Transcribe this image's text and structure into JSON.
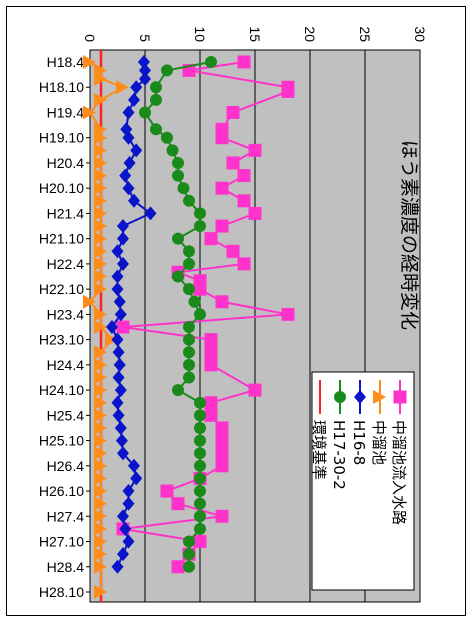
{
  "chart_data": {
    "type": "line",
    "title": "ほう素濃度の経時変化",
    "xlabel": "",
    "ylabel": "",
    "ylim": [
      0,
      30
    ],
    "grid": true,
    "legend_placement": "bottom-right",
    "date_ticks": [
      "H18.4",
      "H18.10",
      "H19.4",
      "H19.10",
      "H20.4",
      "H20.10",
      "H21.4",
      "H21.10",
      "H22.4",
      "H22.10",
      "H23.4",
      "H23.10",
      "H24.4",
      "H24.10",
      "H25.4",
      "H25.10",
      "H26.4",
      "H26.10",
      "H27.4",
      "H27.10",
      "H28.4",
      "H28.10"
    ],
    "value_ticks": [
      "0",
      "5",
      "10",
      "15",
      "20",
      "25",
      "30"
    ],
    "reference_line": {
      "name": "環境基準",
      "value": 1,
      "color": "#ff2020"
    },
    "series": [
      {
        "name": "中溜池流入水路",
        "color": "#ff33cc",
        "marker": "square",
        "points": [
          [
            "H18.4",
            14
          ],
          [
            "H18.6",
            9
          ],
          [
            "H18.10",
            18
          ],
          [
            "H18.11",
            18
          ],
          [
            "H19.4",
            13
          ],
          [
            "H19.8",
            12
          ],
          [
            "H19.10",
            12
          ],
          [
            "H20.1",
            15
          ],
          [
            "H20.4",
            13
          ],
          [
            "H20.7",
            14
          ],
          [
            "H20.10",
            12
          ],
          [
            "H21.1",
            14
          ],
          [
            "H21.4",
            15
          ],
          [
            "H21.7",
            12
          ],
          [
            "H21.10",
            11
          ],
          [
            "H22.1",
            13
          ],
          [
            "H22.4",
            14
          ],
          [
            "H22.6",
            8
          ],
          [
            "H22.8",
            10
          ],
          [
            "H22.10",
            10
          ],
          [
            "H23.1",
            12
          ],
          [
            "H23.4",
            18
          ],
          [
            "H23.7",
            3
          ],
          [
            "H23.10",
            11
          ],
          [
            "H24.1",
            11
          ],
          [
            "H24.4",
            11
          ],
          [
            "H24.10",
            15
          ],
          [
            "H25.1",
            11
          ],
          [
            "H25.4",
            11
          ],
          [
            "H25.7",
            12
          ],
          [
            "H25.10",
            12
          ],
          [
            "H26.1",
            12
          ],
          [
            "H26.4",
            12
          ],
          [
            "H26.7",
            10
          ],
          [
            "H26.10",
            7
          ],
          [
            "H27.1",
            8
          ],
          [
            "H27.4",
            12
          ],
          [
            "H27.7",
            3
          ],
          [
            "H27.10",
            10
          ],
          [
            "H28.1",
            9
          ],
          [
            "H28.4",
            8
          ]
        ]
      },
      {
        "name": "中溜池",
        "color": "#ff8c1a",
        "marker": "triangle",
        "points": [
          [
            "H18.4",
            0
          ],
          [
            "H18.6",
            1
          ],
          [
            "H18.8",
            1
          ],
          [
            "H18.10",
            3
          ],
          [
            "H19.1",
            1
          ],
          [
            "H19.4",
            0
          ],
          [
            "H19.8",
            1
          ],
          [
            "H19.10",
            1
          ],
          [
            "H20.1",
            1
          ],
          [
            "H20.4",
            1
          ],
          [
            "H20.7",
            1
          ],
          [
            "H20.10",
            1
          ],
          [
            "H21.1",
            1
          ],
          [
            "H21.4",
            1
          ],
          [
            "H21.7",
            1
          ],
          [
            "H21.10",
            1
          ],
          [
            "H22.1",
            1
          ],
          [
            "H22.4",
            1
          ],
          [
            "H22.7",
            1
          ],
          [
            "H22.10",
            1
          ],
          [
            "H23.1",
            0
          ],
          [
            "H23.4",
            1
          ],
          [
            "H23.7",
            1
          ],
          [
            "H23.10",
            2
          ],
          [
            "H24.1",
            1
          ],
          [
            "H24.4",
            1
          ],
          [
            "H24.7",
            1
          ],
          [
            "H24.10",
            1
          ],
          [
            "H25.1",
            1
          ],
          [
            "H25.4",
            1
          ],
          [
            "H25.7",
            1
          ],
          [
            "H25.10",
            1
          ],
          [
            "H26.1",
            1
          ],
          [
            "H26.4",
            1
          ],
          [
            "H26.7",
            1
          ],
          [
            "H26.10",
            1
          ],
          [
            "H27.1",
            1
          ],
          [
            "H27.4",
            1
          ],
          [
            "H27.7",
            1
          ],
          [
            "H27.10",
            1
          ],
          [
            "H28.1",
            1
          ],
          [
            "H28.4",
            1
          ],
          [
            "H28.10",
            1
          ]
        ]
      },
      {
        "name": "H16-8",
        "color": "#0a14c8",
        "marker": "diamond",
        "points": [
          [
            "H18.4",
            4.9
          ],
          [
            "H18.6",
            5
          ],
          [
            "H18.8",
            5
          ],
          [
            "H18.10",
            4.2
          ],
          [
            "H19.1",
            4
          ],
          [
            "H19.4",
            3.5
          ],
          [
            "H19.8",
            3.3
          ],
          [
            "H19.10",
            3.5
          ],
          [
            "H20.1",
            4.2
          ],
          [
            "H20.4",
            3.6
          ],
          [
            "H20.7",
            3.2
          ],
          [
            "H20.10",
            3.5
          ],
          [
            "H21.1",
            4
          ],
          [
            "H21.4",
            5.5
          ],
          [
            "H21.7",
            3
          ],
          [
            "H21.10",
            3
          ],
          [
            "H22.1",
            2.5
          ],
          [
            "H22.4",
            3
          ],
          [
            "H22.7",
            2.5
          ],
          [
            "H22.10",
            2.5
          ],
          [
            "H23.1",
            2.7
          ],
          [
            "H23.4",
            2.8
          ],
          [
            "H23.7",
            2
          ],
          [
            "H23.10",
            2.5
          ],
          [
            "H24.1",
            2.6
          ],
          [
            "H24.4",
            2.7
          ],
          [
            "H24.7",
            2.6
          ],
          [
            "H24.10",
            2.8
          ],
          [
            "H25.1",
            2.5
          ],
          [
            "H25.4",
            2.6
          ],
          [
            "H25.7",
            2.8
          ],
          [
            "H25.10",
            2.9
          ],
          [
            "H26.1",
            3
          ],
          [
            "H26.4",
            4
          ],
          [
            "H26.7",
            4.2
          ],
          [
            "H26.10",
            3.5
          ],
          [
            "H27.1",
            3.5
          ],
          [
            "H27.4",
            3
          ],
          [
            "H27.7",
            3.2
          ],
          [
            "H27.10",
            3.5
          ],
          [
            "H28.1",
            3
          ],
          [
            "H28.4",
            2.5
          ]
        ]
      },
      {
        "name": "H17-30-2",
        "color": "#1a8a1a",
        "marker": "circle",
        "points": [
          [
            "H18.4",
            11
          ],
          [
            "H18.6",
            7
          ],
          [
            "H18.10",
            6
          ],
          [
            "H19.1",
            6
          ],
          [
            "H19.4",
            5
          ],
          [
            "H19.8",
            6
          ],
          [
            "H19.10",
            7
          ],
          [
            "H20.1",
            7.5
          ],
          [
            "H20.4",
            8
          ],
          [
            "H20.7",
            8
          ],
          [
            "H20.10",
            8.5
          ],
          [
            "H21.1",
            9
          ],
          [
            "H21.4",
            10
          ],
          [
            "H21.7",
            10
          ],
          [
            "H21.10",
            8
          ],
          [
            "H22.1",
            9
          ],
          [
            "H22.4",
            9
          ],
          [
            "H22.7",
            8
          ],
          [
            "H22.10",
            9
          ],
          [
            "H23.1",
            9.5
          ],
          [
            "H23.4",
            10
          ],
          [
            "H23.7",
            9
          ],
          [
            "H23.10",
            9
          ],
          [
            "H24.1",
            9
          ],
          [
            "H24.4",
            9
          ],
          [
            "H24.7",
            9
          ],
          [
            "H24.10",
            8
          ],
          [
            "H25.1",
            10
          ],
          [
            "H25.4",
            10
          ],
          [
            "H25.7",
            10
          ],
          [
            "H25.10",
            10
          ],
          [
            "H26.1",
            10
          ],
          [
            "H26.4",
            10
          ],
          [
            "H26.7",
            10
          ],
          [
            "H26.10",
            10
          ],
          [
            "H27.1",
            10
          ],
          [
            "H27.4",
            10
          ],
          [
            "H27.7",
            10
          ],
          [
            "H27.10",
            9
          ],
          [
            "H28.1",
            9
          ],
          [
            "H28.4",
            9
          ]
        ]
      }
    ]
  }
}
